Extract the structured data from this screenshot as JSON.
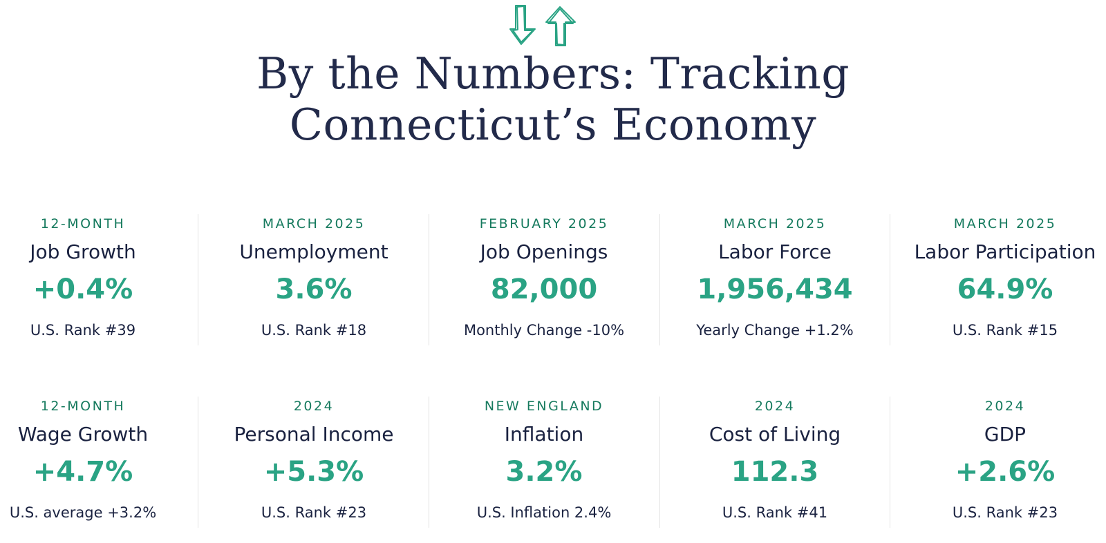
{
  "header": {
    "logo_icon": "down-up-arrows-icon",
    "accent_color": "#2aa384",
    "title_line1": "By the Numbers: Tracking",
    "title_line2": "Connecticut’s Economy"
  },
  "stats": [
    {
      "period": "12-MONTH",
      "metric": "Job Growth",
      "value": "+0.4%",
      "note": "U.S. Rank #39"
    },
    {
      "period": "MARCH 2025",
      "metric": "Unemployment",
      "value": "3.6%",
      "note": "U.S. Rank #18"
    },
    {
      "period": "FEBRUARY 2025",
      "metric": "Job Openings",
      "value": "82,000",
      "note": "Monthly Change -10%"
    },
    {
      "period": "MARCH 2025",
      "metric": "Labor Force",
      "value": "1,956,434",
      "note": "Yearly Change +1.2%"
    },
    {
      "period": "MARCH 2025",
      "metric": "Labor Participation",
      "value": "64.9%",
      "note": "U.S. Rank #15"
    },
    {
      "period": "12-MONTH",
      "metric": "Wage Growth",
      "value": "+4.7%",
      "note": "U.S. average +3.2%"
    },
    {
      "period": "2024",
      "metric": "Personal Income",
      "value": "+5.3%",
      "note": "U.S. Rank #23"
    },
    {
      "period": "NEW ENGLAND",
      "metric": "Inflation",
      "value": "3.2%",
      "note": "U.S. Inflation 2.4%"
    },
    {
      "period": "2024",
      "metric": "Cost of Living",
      "value": "112.3",
      "note": "U.S. Rank #41"
    },
    {
      "period": "2024",
      "metric": "GDP",
      "value": "+2.6%",
      "note": "U.S. Rank #23"
    }
  ]
}
